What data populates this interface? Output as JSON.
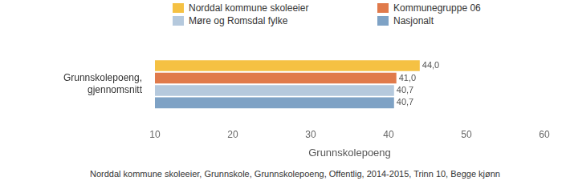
{
  "chart_data": {
    "type": "bar",
    "orientation": "horizontal",
    "categories": [
      "Grunnskolepoeng, gjennomsnitt"
    ],
    "series": [
      {
        "name": "Norddal kommune skoleeier",
        "color": "#f5c143",
        "values": [
          44.0
        ],
        "value_labels": [
          "44,0"
        ]
      },
      {
        "name": "Kommunegruppe 06",
        "color": "#e07a4b",
        "values": [
          41.0
        ],
        "value_labels": [
          "41,0"
        ]
      },
      {
        "name": "Møre og Romsdal fylke",
        "color": "#b5c9dd",
        "values": [
          40.7
        ],
        "value_labels": [
          "40,7"
        ]
      },
      {
        "name": "Nasjonalt",
        "color": "#7ea2c5",
        "values": [
          40.7
        ],
        "value_labels": [
          "40,7"
        ]
      }
    ],
    "xlim": [
      10,
      60
    ],
    "xticks": [
      10,
      20,
      30,
      40,
      50,
      60
    ],
    "x_label": "Grunnskolepoeng",
    "caption": "Norddal kommune skoleeier, Grunnskole, Grunnskolepoeng, Offentlig, 2014-2015, Trinn 10, Begge kjønn",
    "legend": "top",
    "grid": false,
    "data_labels": true
  }
}
